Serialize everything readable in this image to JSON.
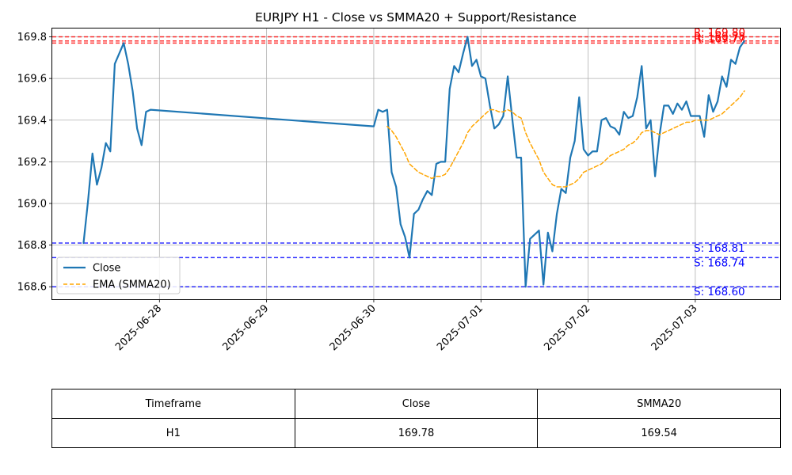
{
  "chart_data": {
    "type": "line",
    "title": "EURJPY H1 - Close vs SMMA20 + Support/Resistance",
    "xlabel": "",
    "ylabel": "",
    "x_ticks": [
      "2025-06-28",
      "2025-06-29",
      "2025-06-30",
      "2025-07-01",
      "2025-07-02",
      "2025-07-03"
    ],
    "y_ticks": [
      "168.6",
      "168.8",
      "169.0",
      "169.2",
      "169.4",
      "169.6",
      "169.8"
    ],
    "xlim": [
      "2025-06-27 00:00",
      "2025-07-03 19:00"
    ],
    "ylim": [
      168.54,
      169.84
    ],
    "grid": true,
    "legend_position": "lower-left",
    "series": [
      {
        "name": "Close",
        "color": "#1f77b4",
        "style": "solid",
        "points": [
          [
            "2025-06-27 07:00",
            168.81
          ],
          [
            "2025-06-27 08:00",
            169.01
          ],
          [
            "2025-06-27 09:00",
            169.24
          ],
          [
            "2025-06-27 10:00",
            169.09
          ],
          [
            "2025-06-27 11:00",
            169.17
          ],
          [
            "2025-06-27 12:00",
            169.29
          ],
          [
            "2025-06-27 13:00",
            169.25
          ],
          [
            "2025-06-27 14:00",
            169.67
          ],
          [
            "2025-06-27 15:00",
            169.72
          ],
          [
            "2025-06-27 16:00",
            169.77
          ],
          [
            "2025-06-27 17:00",
            169.67
          ],
          [
            "2025-06-27 18:00",
            169.54
          ],
          [
            "2025-06-27 19:00",
            169.36
          ],
          [
            "2025-06-27 20:00",
            169.28
          ],
          [
            "2025-06-27 21:00",
            169.44
          ],
          [
            "2025-06-27 22:00",
            169.45
          ],
          [
            "2025-06-30 00:00",
            169.37
          ],
          [
            "2025-06-30 01:00",
            169.45
          ],
          [
            "2025-06-30 02:00",
            169.44
          ],
          [
            "2025-06-30 03:00",
            169.45
          ],
          [
            "2025-06-30 04:00",
            169.15
          ],
          [
            "2025-06-30 05:00",
            169.08
          ],
          [
            "2025-06-30 06:00",
            168.9
          ],
          [
            "2025-06-30 07:00",
            168.84
          ],
          [
            "2025-06-30 08:00",
            168.74
          ],
          [
            "2025-06-30 09:00",
            168.95
          ],
          [
            "2025-06-30 10:00",
            168.97
          ],
          [
            "2025-06-30 11:00",
            169.02
          ],
          [
            "2025-06-30 12:00",
            169.06
          ],
          [
            "2025-06-30 13:00",
            169.04
          ],
          [
            "2025-06-30 14:00",
            169.19
          ],
          [
            "2025-06-30 15:00",
            169.2
          ],
          [
            "2025-06-30 16:00",
            169.2
          ],
          [
            "2025-06-30 17:00",
            169.55
          ],
          [
            "2025-06-30 18:00",
            169.66
          ],
          [
            "2025-06-30 19:00",
            169.63
          ],
          [
            "2025-06-30 20:00",
            169.72
          ],
          [
            "2025-06-30 21:00",
            169.8
          ],
          [
            "2025-06-30 22:00",
            169.66
          ],
          [
            "2025-06-30 23:00",
            169.69
          ],
          [
            "2025-07-01 00:00",
            169.61
          ],
          [
            "2025-07-01 01:00",
            169.6
          ],
          [
            "2025-07-01 02:00",
            169.47
          ],
          [
            "2025-07-01 03:00",
            169.36
          ],
          [
            "2025-07-01 04:00",
            169.38
          ],
          [
            "2025-07-01 05:00",
            169.42
          ],
          [
            "2025-07-01 06:00",
            169.61
          ],
          [
            "2025-07-01 07:00",
            169.41
          ],
          [
            "2025-07-01 08:00",
            169.22
          ],
          [
            "2025-07-01 09:00",
            169.22
          ],
          [
            "2025-07-01 10:00",
            168.6
          ],
          [
            "2025-07-01 11:00",
            168.83
          ],
          [
            "2025-07-01 12:00",
            168.85
          ],
          [
            "2025-07-01 13:00",
            168.87
          ],
          [
            "2025-07-01 14:00",
            168.61
          ],
          [
            "2025-07-01 15:00",
            168.86
          ],
          [
            "2025-07-01 16:00",
            168.77
          ],
          [
            "2025-07-01 17:00",
            168.95
          ],
          [
            "2025-07-01 18:00",
            169.07
          ],
          [
            "2025-07-01 19:00",
            169.05
          ],
          [
            "2025-07-01 20:00",
            169.22
          ],
          [
            "2025-07-01 21:00",
            169.3
          ],
          [
            "2025-07-01 22:00",
            169.51
          ],
          [
            "2025-07-01 23:00",
            169.26
          ],
          [
            "2025-07-02 00:00",
            169.23
          ],
          [
            "2025-07-02 01:00",
            169.25
          ],
          [
            "2025-07-02 02:00",
            169.25
          ],
          [
            "2025-07-02 03:00",
            169.4
          ],
          [
            "2025-07-02 04:00",
            169.41
          ],
          [
            "2025-07-02 05:00",
            169.37
          ],
          [
            "2025-07-02 06:00",
            169.36
          ],
          [
            "2025-07-02 07:00",
            169.33
          ],
          [
            "2025-07-02 08:00",
            169.44
          ],
          [
            "2025-07-02 09:00",
            169.41
          ],
          [
            "2025-07-02 10:00",
            169.42
          ],
          [
            "2025-07-02 11:00",
            169.51
          ],
          [
            "2025-07-02 12:00",
            169.66
          ],
          [
            "2025-07-02 13:00",
            169.36
          ],
          [
            "2025-07-02 14:00",
            169.4
          ],
          [
            "2025-07-02 15:00",
            169.13
          ],
          [
            "2025-07-02 16:00",
            169.33
          ],
          [
            "2025-07-02 17:00",
            169.47
          ],
          [
            "2025-07-02 18:00",
            169.47
          ],
          [
            "2025-07-02 19:00",
            169.43
          ],
          [
            "2025-07-02 20:00",
            169.48
          ],
          [
            "2025-07-02 21:00",
            169.45
          ],
          [
            "2025-07-02 22:00",
            169.49
          ],
          [
            "2025-07-02 23:00",
            169.42
          ],
          [
            "2025-07-03 00:00",
            169.42
          ],
          [
            "2025-07-03 01:00",
            169.42
          ],
          [
            "2025-07-03 02:00",
            169.32
          ],
          [
            "2025-07-03 03:00",
            169.52
          ],
          [
            "2025-07-03 04:00",
            169.44
          ],
          [
            "2025-07-03 05:00",
            169.49
          ],
          [
            "2025-07-03 06:00",
            169.61
          ],
          [
            "2025-07-03 07:00",
            169.56
          ],
          [
            "2025-07-03 08:00",
            169.69
          ],
          [
            "2025-07-03 09:00",
            169.67
          ],
          [
            "2025-07-03 10:00",
            169.75
          ],
          [
            "2025-07-03 11:00",
            169.78
          ]
        ]
      },
      {
        "name": "EMA (SMMA20)",
        "color": "#ffa500",
        "style": "dashed",
        "points": [
          [
            "2025-06-30 03:00",
            169.37
          ],
          [
            "2025-06-30 04:00",
            169.35
          ],
          [
            "2025-06-30 05:00",
            169.32
          ],
          [
            "2025-06-30 06:00",
            169.28
          ],
          [
            "2025-06-30 07:00",
            169.24
          ],
          [
            "2025-06-30 08:00",
            169.19
          ],
          [
            "2025-06-30 09:00",
            169.17
          ],
          [
            "2025-06-30 10:00",
            169.15
          ],
          [
            "2025-06-30 11:00",
            169.14
          ],
          [
            "2025-06-30 12:00",
            169.13
          ],
          [
            "2025-06-30 13:00",
            169.12
          ],
          [
            "2025-06-30 14:00",
            169.13
          ],
          [
            "2025-06-30 15:00",
            169.13
          ],
          [
            "2025-06-30 16:00",
            169.14
          ],
          [
            "2025-06-30 17:00",
            169.17
          ],
          [
            "2025-06-30 18:00",
            169.21
          ],
          [
            "2025-06-30 19:00",
            169.25
          ],
          [
            "2025-06-30 20:00",
            169.29
          ],
          [
            "2025-06-30 21:00",
            169.34
          ],
          [
            "2025-06-30 22:00",
            169.37
          ],
          [
            "2025-06-30 23:00",
            169.39
          ],
          [
            "2025-07-01 00:00",
            169.41
          ],
          [
            "2025-07-01 01:00",
            169.43
          ],
          [
            "2025-07-01 02:00",
            169.45
          ],
          [
            "2025-07-01 03:00",
            169.45
          ],
          [
            "2025-07-01 04:00",
            169.44
          ],
          [
            "2025-07-01 05:00",
            169.44
          ],
          [
            "2025-07-01 06:00",
            169.45
          ],
          [
            "2025-07-01 07:00",
            169.44
          ],
          [
            "2025-07-01 08:00",
            169.42
          ],
          [
            "2025-07-01 09:00",
            169.41
          ],
          [
            "2025-07-01 10:00",
            169.34
          ],
          [
            "2025-07-01 11:00",
            169.29
          ],
          [
            "2025-07-01 12:00",
            169.25
          ],
          [
            "2025-07-01 13:00",
            169.21
          ],
          [
            "2025-07-01 14:00",
            169.15
          ],
          [
            "2025-07-01 15:00",
            169.12
          ],
          [
            "2025-07-01 16:00",
            169.09
          ],
          [
            "2025-07-01 17:00",
            169.08
          ],
          [
            "2025-07-01 18:00",
            169.08
          ],
          [
            "2025-07-01 19:00",
            169.08
          ],
          [
            "2025-07-01 20:00",
            169.09
          ],
          [
            "2025-07-01 21:00",
            169.1
          ],
          [
            "2025-07-01 22:00",
            169.12
          ],
          [
            "2025-07-01 23:00",
            169.15
          ],
          [
            "2025-07-02 00:00",
            169.16
          ],
          [
            "2025-07-02 01:00",
            169.17
          ],
          [
            "2025-07-02 02:00",
            169.18
          ],
          [
            "2025-07-02 03:00",
            169.19
          ],
          [
            "2025-07-02 04:00",
            169.21
          ],
          [
            "2025-07-02 05:00",
            169.23
          ],
          [
            "2025-07-02 06:00",
            169.24
          ],
          [
            "2025-07-02 07:00",
            169.25
          ],
          [
            "2025-07-02 08:00",
            169.26
          ],
          [
            "2025-07-02 09:00",
            169.28
          ],
          [
            "2025-07-02 10:00",
            169.29
          ],
          [
            "2025-07-02 11:00",
            169.31
          ],
          [
            "2025-07-02 12:00",
            169.34
          ],
          [
            "2025-07-02 13:00",
            169.35
          ],
          [
            "2025-07-02 14:00",
            169.35
          ],
          [
            "2025-07-02 15:00",
            169.34
          ],
          [
            "2025-07-02 16:00",
            169.33
          ],
          [
            "2025-07-02 17:00",
            169.34
          ],
          [
            "2025-07-02 18:00",
            169.35
          ],
          [
            "2025-07-02 19:00",
            169.36
          ],
          [
            "2025-07-02 20:00",
            169.37
          ],
          [
            "2025-07-02 21:00",
            169.38
          ],
          [
            "2025-07-02 22:00",
            169.39
          ],
          [
            "2025-07-02 23:00",
            169.39
          ],
          [
            "2025-07-03 00:00",
            169.4
          ],
          [
            "2025-07-03 01:00",
            169.4
          ],
          [
            "2025-07-03 02:00",
            169.4
          ],
          [
            "2025-07-03 03:00",
            169.4
          ],
          [
            "2025-07-03 04:00",
            169.41
          ],
          [
            "2025-07-03 05:00",
            169.42
          ],
          [
            "2025-07-03 06:00",
            169.43
          ],
          [
            "2025-07-03 07:00",
            169.45
          ],
          [
            "2025-07-03 08:00",
            169.47
          ],
          [
            "2025-07-03 09:00",
            169.49
          ],
          [
            "2025-07-03 10:00",
            169.51
          ],
          [
            "2025-07-03 11:00",
            169.54
          ]
        ]
      }
    ],
    "resistance_levels": [
      {
        "value": 169.8,
        "label": "R: 169.80"
      },
      {
        "value": 169.78,
        "label": "R: 169.78"
      },
      {
        "value": 169.77,
        "label": "R: 169.77"
      }
    ],
    "support_levels": [
      {
        "value": 168.81,
        "label": "S: 168.81"
      },
      {
        "value": 168.74,
        "label": "S: 168.74"
      },
      {
        "value": 168.6,
        "label": "S: 168.60"
      }
    ],
    "colors": {
      "resistance": "#ff0000",
      "support": "#0000ff",
      "grid": "#b0b0b0"
    }
  },
  "table": {
    "headers": [
      "Timeframe",
      "Close",
      "SMMA20"
    ],
    "rows": [
      [
        "H1",
        "169.78",
        "169.54"
      ]
    ]
  }
}
